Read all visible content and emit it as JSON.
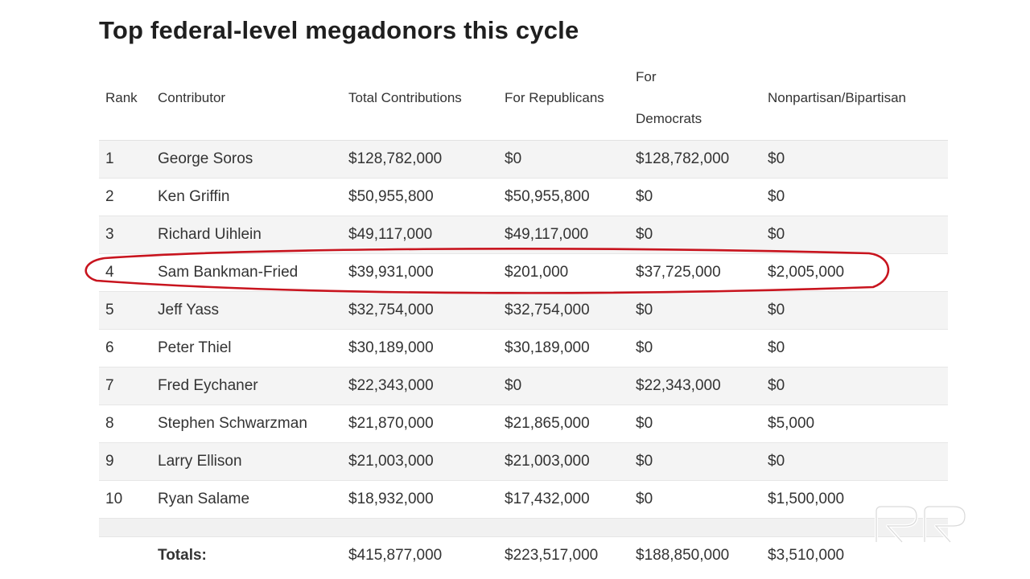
{
  "title": "Top federal-level megadonors this cycle",
  "headers": {
    "rank": "Rank",
    "contributor": "Contributor",
    "total": "Total Contributions",
    "rep": "For Republicans",
    "dem_line1": "For",
    "dem_line2": "Democrats",
    "nonpartisan": "Nonpartisan/Bipartisan"
  },
  "rows": [
    {
      "rank": "1",
      "name": "George Soros",
      "total": "$128,782,000",
      "rep": "$0",
      "dem": "$128,782,000",
      "non": "$0"
    },
    {
      "rank": "2",
      "name": "Ken Griffin",
      "total": "$50,955,800",
      "rep": "$50,955,800",
      "dem": "$0",
      "non": "$0"
    },
    {
      "rank": "3",
      "name": "Richard Uihlein",
      "total": "$49,117,000",
      "rep": "$49,117,000",
      "dem": "$0",
      "non": "$0"
    },
    {
      "rank": "4",
      "name": "Sam Bankman-Fried",
      "total": "$39,931,000",
      "rep": "$201,000",
      "dem": "$37,725,000",
      "non": "$2,005,000"
    },
    {
      "rank": "5",
      "name": "Jeff Yass",
      "total": "$32,754,000",
      "rep": "$32,754,000",
      "dem": "$0",
      "non": "$0"
    },
    {
      "rank": "6",
      "name": "Peter Thiel",
      "total": "$30,189,000",
      "rep": "$30,189,000",
      "dem": "$0",
      "non": "$0"
    },
    {
      "rank": "7",
      "name": "Fred Eychaner",
      "total": "$22,343,000",
      "rep": "$0",
      "dem": "$22,343,000",
      "non": "$0"
    },
    {
      "rank": "8",
      "name": "Stephen Schwarzman",
      "total": "$21,870,000",
      "rep": "$21,865,000",
      "dem": "$0",
      "non": "$5,000"
    },
    {
      "rank": "9",
      "name": "Larry Ellison",
      "total": "$21,003,000",
      "rep": "$21,003,000",
      "dem": "$0",
      "non": "$0"
    },
    {
      "rank": "10",
      "name": "Ryan Salame",
      "total": "$18,932,000",
      "rep": "$17,432,000",
      "dem": "$0",
      "non": "$1,500,000"
    }
  ],
  "totals": {
    "label": "Totals:",
    "total": "$415,877,000",
    "rep": "$223,517,000",
    "dem": "$188,850,000",
    "non": "$3,510,000"
  },
  "colors": {
    "highlight_circle": "#c8141e",
    "row_stripe": "#f4f4f4"
  },
  "icons": {
    "logo": "rr-logo"
  }
}
